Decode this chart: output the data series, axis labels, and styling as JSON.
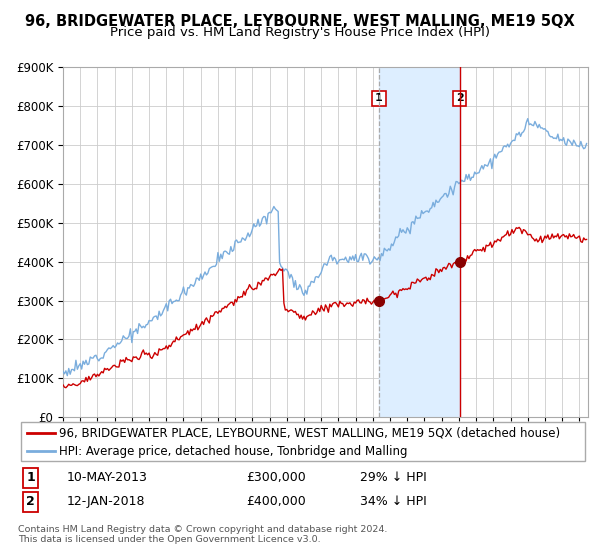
{
  "title": "96, BRIDGEWATER PLACE, LEYBOURNE, WEST MALLING, ME19 5QX",
  "subtitle": "Price paid vs. HM Land Registry's House Price Index (HPI)",
  "xlim_start": 1995.0,
  "xlim_end": 2025.5,
  "ylim": [
    0,
    900000
  ],
  "yticks": [
    0,
    100000,
    200000,
    300000,
    400000,
    500000,
    600000,
    700000,
    800000,
    900000
  ],
  "ytick_labels": [
    "£0",
    "£100K",
    "£200K",
    "£300K",
    "£400K",
    "£500K",
    "£600K",
    "£700K",
    "£800K",
    "£900K"
  ],
  "hpi_color": "#7aaddd",
  "price_color": "#cc0000",
  "marker_color": "#880000",
  "vline1_color": "#aaaaaa",
  "vline2_color": "#cc0000",
  "shade_color": "#ddeeff",
  "point1_x": 2013.36,
  "point1_y": 300000,
  "point2_x": 2018.04,
  "point2_y": 400000,
  "legend_line1": "96, BRIDGEWATER PLACE, LEYBOURNE, WEST MALLING, ME19 5QX (detached house)",
  "legend_line2": "HPI: Average price, detached house, Tonbridge and Malling",
  "table_row1": [
    "1",
    "10-MAY-2013",
    "£300,000",
    "29% ↓ HPI"
  ],
  "table_row2": [
    "2",
    "12-JAN-2018",
    "£400,000",
    "34% ↓ HPI"
  ],
  "footnote": "Contains HM Land Registry data © Crown copyright and database right 2024.\nThis data is licensed under the Open Government Licence v3.0.",
  "background_color": "#ffffff",
  "grid_color": "#cccccc",
  "title_fontsize": 10.5,
  "subtitle_fontsize": 9.5,
  "axis_fontsize": 8.5,
  "legend_fontsize": 8.5,
  "table_fontsize": 9
}
